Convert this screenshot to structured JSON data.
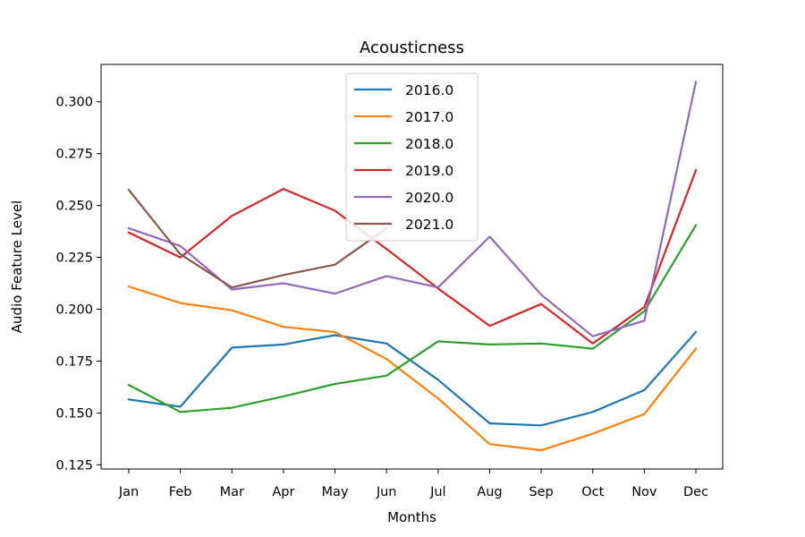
{
  "chart_data": {
    "type": "line",
    "title": "Acousticness",
    "xlabel": "Months",
    "ylabel": "Audio Feature Level",
    "categories": [
      "Jan",
      "Feb",
      "Mar",
      "Apr",
      "May",
      "Jun",
      "Jul",
      "Aug",
      "Sep",
      "Oct",
      "Nov",
      "Dec"
    ],
    "ylim": [
      0.123,
      0.318
    ],
    "yticks": [
      0.125,
      0.15,
      0.175,
      0.2,
      0.225,
      0.25,
      0.275,
      0.3
    ],
    "ytick_labels": [
      "0.125",
      "0.150",
      "0.175",
      "0.200",
      "0.225",
      "0.250",
      "0.275",
      "0.300"
    ],
    "grid": false,
    "legend_position": "top-center",
    "series": [
      {
        "name": "2016.0",
        "color": "#1f77b4",
        "values": [
          0.1565,
          0.153,
          0.1815,
          0.183,
          0.1875,
          0.1835,
          0.166,
          0.145,
          0.144,
          0.1505,
          0.161,
          0.189
        ]
      },
      {
        "name": "2017.0",
        "color": "#ff7f0e",
        "values": [
          0.211,
          0.203,
          0.1995,
          0.1915,
          0.189,
          0.176,
          0.157,
          0.135,
          0.132,
          0.14,
          0.1495,
          0.181
        ]
      },
      {
        "name": "2018.0",
        "color": "#2ca02c",
        "values": [
          0.1635,
          0.1505,
          0.1525,
          0.158,
          0.164,
          0.168,
          0.1845,
          0.183,
          0.1835,
          0.181,
          0.199,
          0.2405
        ]
      },
      {
        "name": "2019.0",
        "color": "#d62728",
        "values": [
          0.237,
          0.225,
          0.245,
          0.258,
          0.2475,
          0.229,
          0.21,
          0.192,
          0.2025,
          0.1835,
          0.201,
          0.267
        ]
      },
      {
        "name": "2020.0",
        "color": "#9467bd",
        "values": [
          0.239,
          0.2305,
          0.2095,
          0.2125,
          0.2075,
          0.216,
          0.2105,
          0.235,
          0.207,
          0.187,
          0.1945,
          0.3095
        ]
      },
      {
        "name": "2021.0",
        "color": "#8c564b",
        "values": [
          0.2575,
          0.2265,
          0.2105,
          0.2165,
          0.2215,
          0.239,
          null,
          null,
          null,
          null,
          null,
          null
        ]
      }
    ]
  }
}
